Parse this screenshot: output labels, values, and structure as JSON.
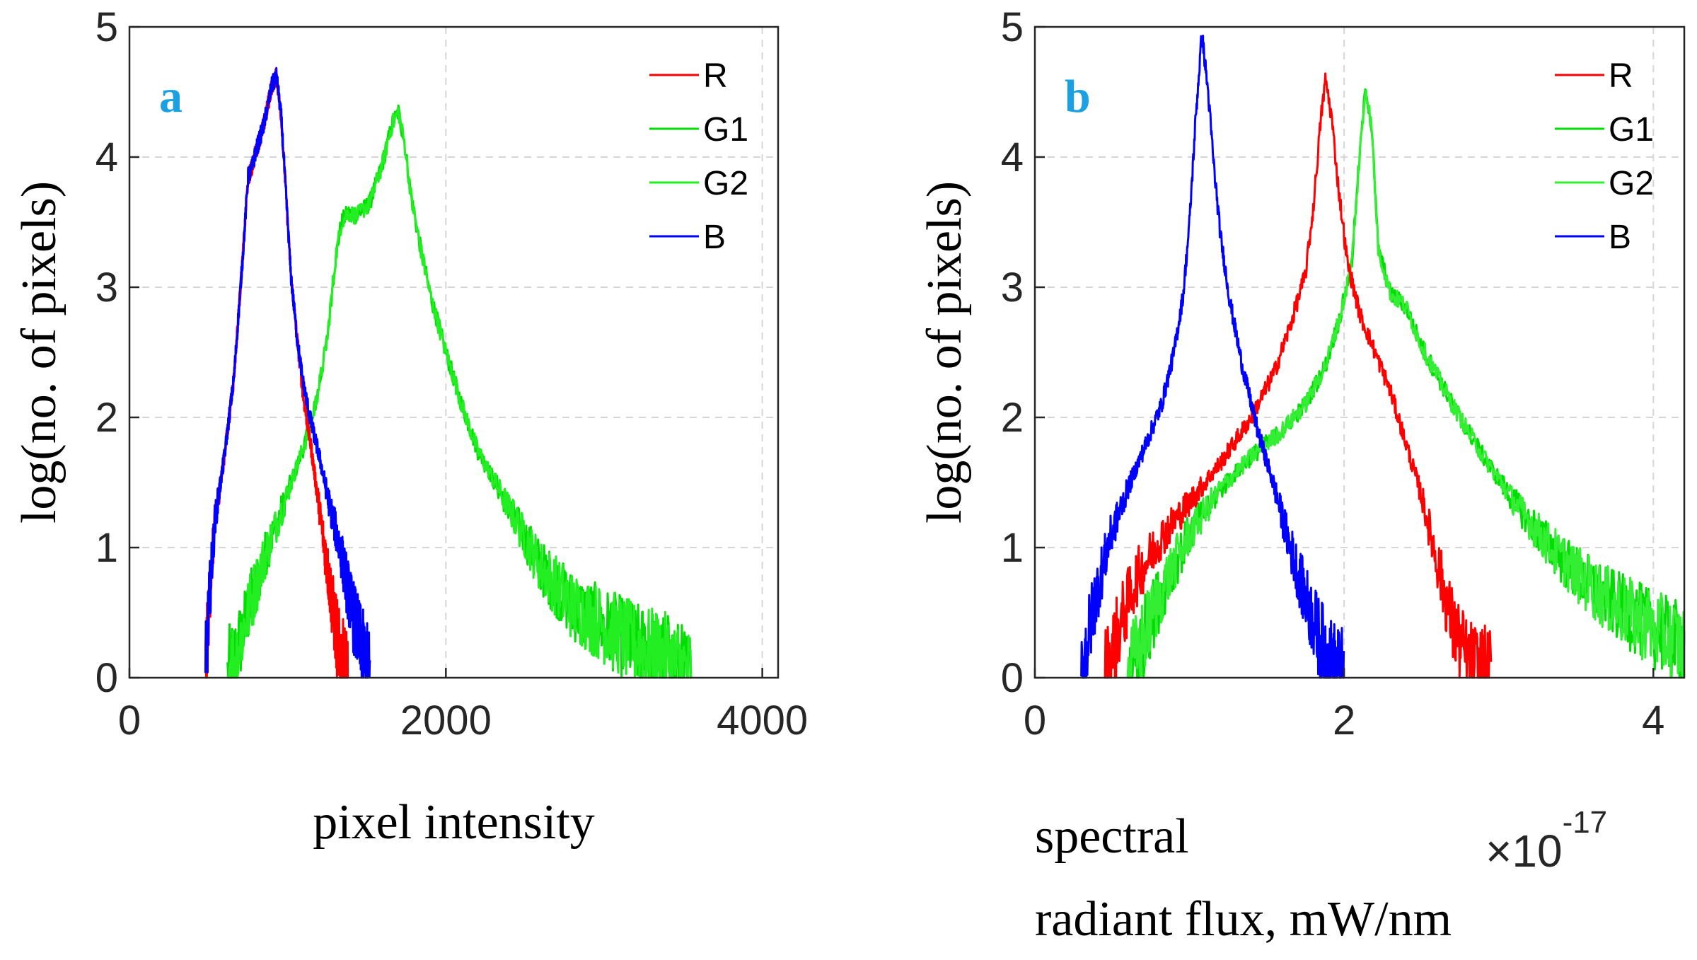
{
  "chart_data": [
    {
      "type": "line",
      "panel_label": "a",
      "xlabel": "pixel  intensity",
      "ylabel": "log(no. of pixels)",
      "xlim": [
        0,
        4100
      ],
      "ylim": [
        0,
        5
      ],
      "xticks": [
        0,
        2000,
        4000
      ],
      "xtick_labels": [
        "0",
        "2000",
        "4000"
      ],
      "yticks": [
        0,
        1,
        2,
        3,
        4,
        5
      ],
      "ytick_labels": [
        "0",
        "1",
        "2",
        "3",
        "4",
        "5"
      ],
      "grid": true,
      "legend_position": "top-right",
      "series": [
        {
          "name": "R",
          "color": "#ff0000",
          "start": 480,
          "end": 1380,
          "points": [
            [
              480,
              0
            ],
            [
              505,
              0.6
            ],
            [
              540,
              1.2
            ],
            [
              600,
              1.7
            ],
            [
              660,
              2.3
            ],
            [
              720,
              3.3
            ],
            [
              750,
              3.85
            ],
            [
              770,
              3.9
            ],
            [
              800,
              4.05
            ],
            [
              850,
              4.25
            ],
            [
              900,
              4.55
            ],
            [
              930,
              4.62
            ],
            [
              960,
              4.3
            ],
            [
              990,
              3.7
            ],
            [
              1020,
              3.1
            ],
            [
              1060,
              2.6
            ],
            [
              1100,
              2.15
            ],
            [
              1150,
              1.75
            ],
            [
              1200,
              1.3
            ],
            [
              1250,
              0.85
            ],
            [
              1300,
              0.4
            ],
            [
              1330,
              0.15
            ],
            [
              1380,
              0
            ]
          ]
        },
        {
          "name": "G1",
          "color": "#00dd00",
          "start": 620,
          "end": 3550,
          "points": [
            [
              620,
              0
            ],
            [
              680,
              0.2
            ],
            [
              760,
              0.55
            ],
            [
              860,
              0.95
            ],
            [
              980,
              1.35
            ],
            [
              1080,
              1.7
            ],
            [
              1150,
              1.95
            ],
            [
              1200,
              2.25
            ],
            [
              1250,
              2.6
            ],
            [
              1300,
              3.2
            ],
            [
              1340,
              3.5
            ],
            [
              1380,
              3.57
            ],
            [
              1440,
              3.55
            ],
            [
              1520,
              3.65
            ],
            [
              1600,
              3.95
            ],
            [
              1660,
              4.25
            ],
            [
              1700,
              4.35
            ],
            [
              1740,
              4.1
            ],
            [
              1780,
              3.7
            ],
            [
              1840,
              3.3
            ],
            [
              1900,
              2.95
            ],
            [
              2000,
              2.5
            ],
            [
              2100,
              2.1
            ],
            [
              2200,
              1.75
            ],
            [
              2400,
              1.3
            ],
            [
              2600,
              0.85
            ],
            [
              2800,
              0.55
            ],
            [
              3000,
              0.4
            ],
            [
              3200,
              0.25
            ],
            [
              3400,
              0.15
            ],
            [
              3550,
              0
            ]
          ]
        },
        {
          "name": "G2",
          "color": "#22ee22",
          "start": 620,
          "end": 3550,
          "points": [
            [
              620,
              0
            ],
            [
              680,
              0.2
            ],
            [
              760,
              0.55
            ],
            [
              860,
              0.95
            ],
            [
              980,
              1.35
            ],
            [
              1080,
              1.7
            ],
            [
              1150,
              1.95
            ],
            [
              1200,
              2.25
            ],
            [
              1250,
              2.6
            ],
            [
              1300,
              3.2
            ],
            [
              1340,
              3.5
            ],
            [
              1380,
              3.57
            ],
            [
              1440,
              3.55
            ],
            [
              1520,
              3.65
            ],
            [
              1600,
              3.95
            ],
            [
              1660,
              4.25
            ],
            [
              1700,
              4.35
            ],
            [
              1740,
              4.1
            ],
            [
              1780,
              3.7
            ],
            [
              1840,
              3.3
            ],
            [
              1900,
              2.95
            ],
            [
              2000,
              2.5
            ],
            [
              2100,
              2.1
            ],
            [
              2200,
              1.75
            ],
            [
              2400,
              1.3
            ],
            [
              2600,
              0.85
            ],
            [
              2800,
              0.55
            ],
            [
              3000,
              0.4
            ],
            [
              3200,
              0.25
            ],
            [
              3400,
              0.15
            ],
            [
              3550,
              0
            ]
          ]
        },
        {
          "name": "B",
          "color": "#0000ff",
          "start": 480,
          "end": 1520,
          "points": [
            [
              480,
              0
            ],
            [
              505,
              0.6
            ],
            [
              540,
              1.2
            ],
            [
              600,
              1.7
            ],
            [
              660,
              2.3
            ],
            [
              720,
              3.3
            ],
            [
              750,
              3.85
            ],
            [
              770,
              3.9
            ],
            [
              800,
              4.05
            ],
            [
              850,
              4.25
            ],
            [
              900,
              4.55
            ],
            [
              930,
              4.62
            ],
            [
              960,
              4.3
            ],
            [
              990,
              3.7
            ],
            [
              1020,
              3.1
            ],
            [
              1060,
              2.6
            ],
            [
              1100,
              2.25
            ],
            [
              1150,
              1.95
            ],
            [
              1200,
              1.7
            ],
            [
              1260,
              1.35
            ],
            [
              1330,
              1.0
            ],
            [
              1400,
              0.55
            ],
            [
              1460,
              0.25
            ],
            [
              1520,
              0
            ]
          ]
        }
      ]
    },
    {
      "type": "line",
      "panel_label": "b",
      "xlabel": "spectral",
      "xlabel_line2": "radiant flux, mW/nm",
      "ylabel": "log(no. of pixels)",
      "multiplier_base": "×10",
      "multiplier_exponent": "-17",
      "xlim": [
        0,
        4.2
      ],
      "ylim": [
        0,
        5
      ],
      "xticks": [
        0,
        2,
        4
      ],
      "xtick_labels": [
        "0",
        "2",
        "4"
      ],
      "yticks": [
        0,
        1,
        2,
        3,
        4,
        5
      ],
      "ytick_labels": [
        "0",
        "1",
        "2",
        "3",
        "4",
        "5"
      ],
      "grid": true,
      "legend_position": "top-right",
      "series": [
        {
          "name": "R",
          "color": "#ff0000",
          "start": 0.45,
          "end": 2.95,
          "points": [
            [
              0.45,
              0
            ],
            [
              0.55,
              0.4
            ],
            [
              0.65,
              0.75
            ],
            [
              0.8,
              1.05
            ],
            [
              1.0,
              1.35
            ],
            [
              1.2,
              1.65
            ],
            [
              1.4,
              2.0
            ],
            [
              1.55,
              2.35
            ],
            [
              1.65,
              2.7
            ],
            [
              1.75,
              3.1
            ],
            [
              1.8,
              3.6
            ],
            [
              1.85,
              4.3
            ],
            [
              1.88,
              4.6
            ],
            [
              1.92,
              4.3
            ],
            [
              1.96,
              3.8
            ],
            [
              2.02,
              3.2
            ],
            [
              2.1,
              2.8
            ],
            [
              2.2,
              2.5
            ],
            [
              2.3,
              2.2
            ],
            [
              2.4,
              1.8
            ],
            [
              2.5,
              1.4
            ],
            [
              2.6,
              0.9
            ],
            [
              2.7,
              0.4
            ],
            [
              2.8,
              0.1
            ],
            [
              2.95,
              0
            ]
          ]
        },
        {
          "name": "G1",
          "color": "#00dd00",
          "start": 0.6,
          "end": 4.2,
          "points": [
            [
              0.6,
              0
            ],
            [
              0.7,
              0.3
            ],
            [
              0.85,
              0.75
            ],
            [
              1.0,
              1.1
            ],
            [
              1.2,
              1.45
            ],
            [
              1.4,
              1.7
            ],
            [
              1.6,
              1.9
            ],
            [
              1.75,
              2.1
            ],
            [
              1.88,
              2.4
            ],
            [
              1.98,
              2.8
            ],
            [
              2.05,
              3.2
            ],
            [
              2.1,
              4.0
            ],
            [
              2.14,
              4.55
            ],
            [
              2.18,
              4.2
            ],
            [
              2.22,
              3.3
            ],
            [
              2.3,
              2.95
            ],
            [
              2.4,
              2.85
            ],
            [
              2.5,
              2.55
            ],
            [
              2.7,
              2.1
            ],
            [
              2.9,
              1.7
            ],
            [
              3.1,
              1.35
            ],
            [
              3.3,
              1.05
            ],
            [
              3.5,
              0.8
            ],
            [
              3.7,
              0.6
            ],
            [
              3.9,
              0.45
            ],
            [
              4.1,
              0.3
            ],
            [
              4.2,
              0.25
            ]
          ]
        },
        {
          "name": "G2",
          "color": "#33ee33",
          "start": 0.6,
          "end": 4.2,
          "points": [
            [
              0.6,
              0
            ],
            [
              0.7,
              0.3
            ],
            [
              0.85,
              0.75
            ],
            [
              1.0,
              1.1
            ],
            [
              1.2,
              1.45
            ],
            [
              1.4,
              1.7
            ],
            [
              1.6,
              1.9
            ],
            [
              1.75,
              2.1
            ],
            [
              1.88,
              2.4
            ],
            [
              1.98,
              2.8
            ],
            [
              2.05,
              3.2
            ],
            [
              2.1,
              4.0
            ],
            [
              2.14,
              4.55
            ],
            [
              2.18,
              4.2
            ],
            [
              2.22,
              3.3
            ],
            [
              2.3,
              2.95
            ],
            [
              2.4,
              2.85
            ],
            [
              2.5,
              2.55
            ],
            [
              2.7,
              2.1
            ],
            [
              2.9,
              1.7
            ],
            [
              3.1,
              1.35
            ],
            [
              3.3,
              1.05
            ],
            [
              3.5,
              0.8
            ],
            [
              3.7,
              0.6
            ],
            [
              3.9,
              0.45
            ],
            [
              4.1,
              0.3
            ],
            [
              4.2,
              0.25
            ]
          ]
        },
        {
          "name": "B",
          "color": "#0000ff",
          "start": 0.3,
          "end": 2.0,
          "points": [
            [
              0.3,
              0
            ],
            [
              0.38,
              0.55
            ],
            [
              0.48,
              1.05
            ],
            [
              0.6,
              1.45
            ],
            [
              0.72,
              1.8
            ],
            [
              0.82,
              2.1
            ],
            [
              0.9,
              2.5
            ],
            [
              0.96,
              2.95
            ],
            [
              1.0,
              3.5
            ],
            [
              1.04,
              4.3
            ],
            [
              1.08,
              4.95
            ],
            [
              1.12,
              4.5
            ],
            [
              1.16,
              3.9
            ],
            [
              1.2,
              3.4
            ],
            [
              1.26,
              2.9
            ],
            [
              1.34,
              2.4
            ],
            [
              1.44,
              1.9
            ],
            [
              1.54,
              1.5
            ],
            [
              1.64,
              1.05
            ],
            [
              1.74,
              0.65
            ],
            [
              1.84,
              0.3
            ],
            [
              1.92,
              0.1
            ],
            [
              2.0,
              0
            ]
          ]
        }
      ]
    }
  ]
}
